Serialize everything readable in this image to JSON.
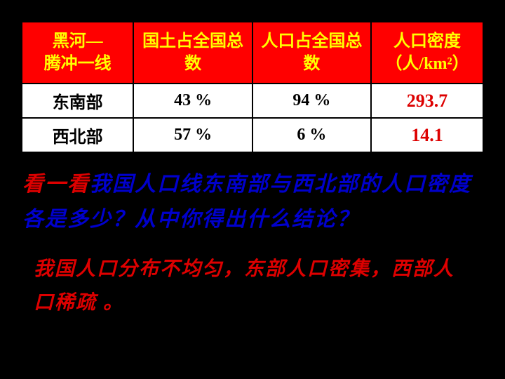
{
  "table": {
    "headers": [
      "黑河—\n腾冲一线",
      "国土占全国总数",
      "人口占全国总数",
      "人口密度（人/km²）"
    ],
    "rows": [
      {
        "region": "东南部",
        "land": "43 %",
        "pop": "94 %",
        "density": "293.7"
      },
      {
        "region": "西北部",
        "land": "57 %",
        "pop": "6 %",
        "density": "14.1"
      }
    ],
    "header_bg": "#ff0000",
    "header_fg": "#ffff00",
    "cell_fg": "#000000",
    "density_fg": "#dd0000",
    "border_color": "#000000"
  },
  "question": {
    "lead": "看一看",
    "body": "我国人口线东南部与西北部的人口密度各是多少？从中你得出什么结论？",
    "lead_color": "#dd0000",
    "body_color": "#0000cc",
    "fontsize": 30
  },
  "answer": {
    "text": "我国人口分布不均匀，东部人口密集，西部人口稀疏 。",
    "color": "#dd0000",
    "fontsize": 28
  },
  "background_color": "#000000"
}
